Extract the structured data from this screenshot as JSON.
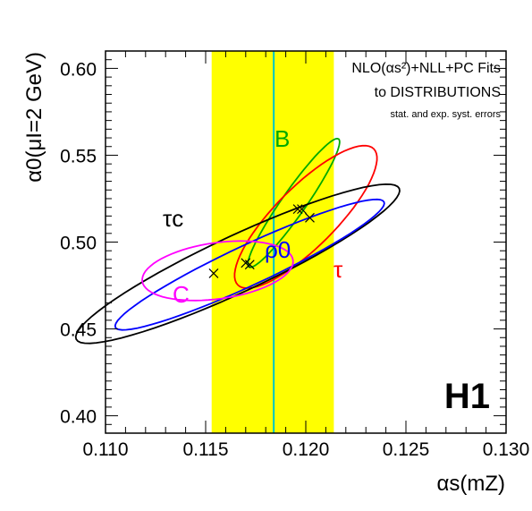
{
  "chart_data": {
    "type": "scatter",
    "title": "",
    "xlabel": "αs(mZ)",
    "ylabel": "α0(μI=2 GeV)",
    "xlim": [
      0.11,
      0.13
    ],
    "ylim": [
      0.39,
      0.61
    ],
    "x_ticks": [
      "0.110",
      "0.115",
      "0.120",
      "0.125",
      "0.130"
    ],
    "y_ticks": [
      "0.40",
      "0.45",
      "0.50",
      "0.55",
      "0.60"
    ],
    "band": {
      "x": [
        0.1153,
        0.1214
      ],
      "color": "#ffff00"
    },
    "central_line": {
      "x": 0.1184,
      "color": "#00c8c8"
    },
    "annotations": {
      "line1": "NLO(αs²)+NLL+PC Fits",
      "line2": "to DISTRIBUTIONS",
      "line3": "stat. and exp. syst. errors",
      "experiment": "H1"
    },
    "series": [
      {
        "name": "B",
        "color": "#00aa00",
        "points": [
          [
            0.1198,
            0.519
          ]
        ],
        "ellipse": {
          "cx": 0.1194,
          "cy": 0.5225,
          "a": 0.0039,
          "b": 0.0006,
          "angle_deg": 55
        }
      },
      {
        "name": "τ",
        "color": "#ff0000",
        "points": [
          [
            0.1196,
            0.519
          ],
          [
            0.1202,
            0.514
          ]
        ],
        "ellipse": {
          "cx": 0.12,
          "cy": 0.5145,
          "a": 0.0048,
          "b": 0.0015,
          "angle_deg": 45
        }
      },
      {
        "name": "τc",
        "color": "#000000",
        "points": [
          [
            0.117,
            0.488
          ]
        ],
        "ellipse": {
          "cx": 0.1166,
          "cy": 0.4875,
          "a": 0.0089,
          "b": 0.0014,
          "angle_deg": 25
        }
      },
      {
        "name": "ρ0",
        "color": "#0000ff",
        "points": [
          [
            0.1172,
            0.487
          ]
        ],
        "ellipse": {
          "cx": 0.1172,
          "cy": 0.487,
          "a": 0.0074,
          "b": 0.001,
          "angle_deg": 25
        }
      },
      {
        "name": "C",
        "color": "#ff00ff",
        "points": [
          [
            0.1154,
            0.482
          ]
        ],
        "ellipse": {
          "cx": 0.1156,
          "cy": 0.4835,
          "a": 0.0038,
          "b": 0.0014,
          "angle_deg": 8
        }
      }
    ]
  }
}
